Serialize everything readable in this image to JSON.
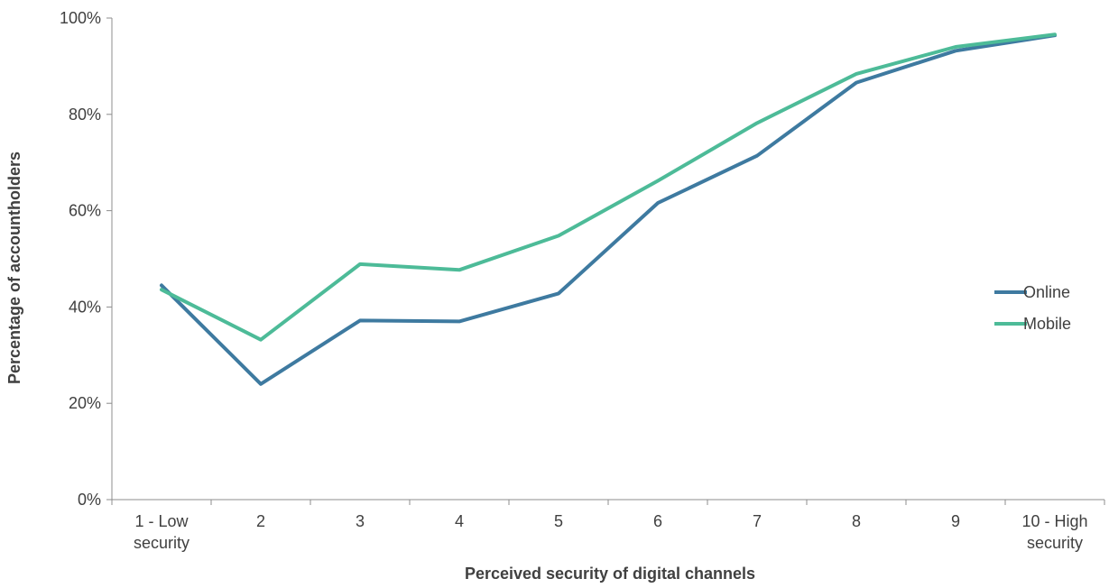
{
  "chart_data": {
    "type": "line",
    "title": "",
    "xlabel": "Perceived security of digital channels",
    "ylabel": "Percentage of accountholders",
    "categories": [
      [
        "1 - Low",
        "security"
      ],
      [
        "2"
      ],
      [
        "3"
      ],
      [
        "4"
      ],
      [
        "5"
      ],
      [
        "6"
      ],
      [
        "7"
      ],
      [
        "8"
      ],
      [
        "9"
      ],
      [
        "10 - High",
        "security"
      ]
    ],
    "ylim": [
      0,
      100
    ],
    "yticks": [
      0,
      20,
      40,
      60,
      80,
      100
    ],
    "ytick_suffix": "%",
    "grid": false,
    "legend_position": "right",
    "series": [
      {
        "name": "Online",
        "color": "#3e7aa0",
        "values": [
          44.5,
          24.0,
          37.2,
          37.0,
          42.8,
          61.6,
          71.4,
          86.6,
          93.2,
          96.4
        ]
      },
      {
        "name": "Mobile",
        "color": "#4dbb98",
        "values": [
          43.6,
          33.2,
          48.9,
          47.7,
          54.8,
          66.2,
          78.2,
          88.4,
          94.0,
          96.6
        ]
      }
    ]
  }
}
